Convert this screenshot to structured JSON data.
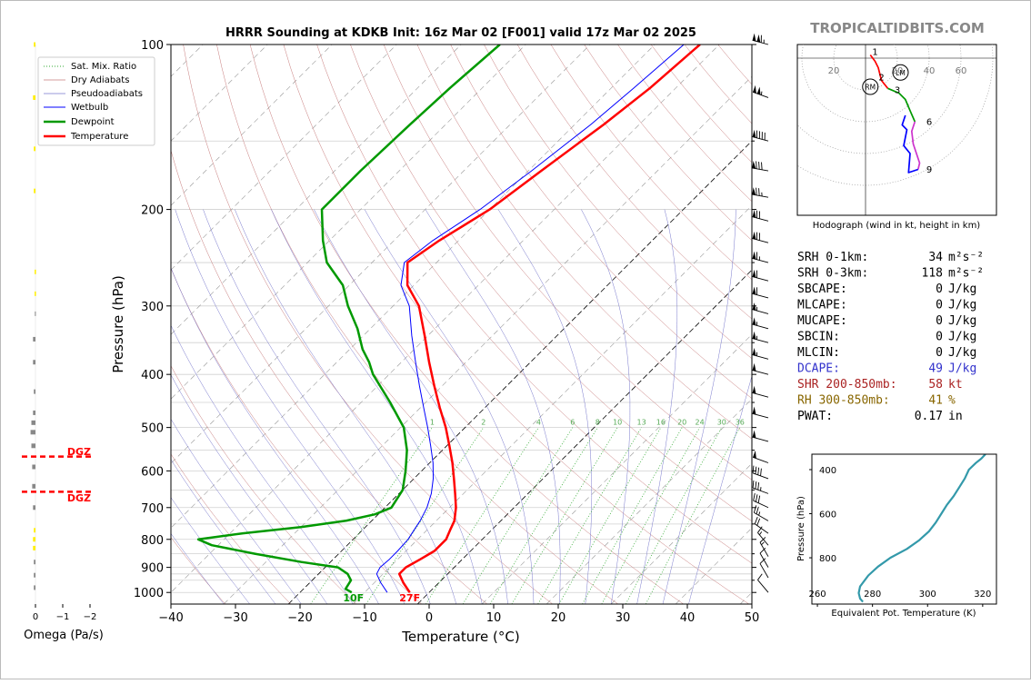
{
  "title": "HRRR Sounding at KDKB Init: 16z Mar 02 [F001] valid 17z Mar 02 2025",
  "brand": "TROPICALTIDBITS.COM",
  "colors": {
    "temperature": "#ff0000",
    "dewpoint": "#009900",
    "wetbulb": "#0000ff",
    "isotherm": "#000000",
    "dry_adiabat": "#c77b7b",
    "moist_adiabat": "#7777cc",
    "mixing_ratio": "#33aa33",
    "dgz": "#ff0000",
    "theta_e": "#3399aa",
    "brand": "#888888"
  },
  "chart_data": [
    {
      "id": "skewt",
      "type": "line",
      "xlabel": "Temperature (°C)",
      "ylabel": "Pressure (hPa)",
      "x_ticks": [
        "−40",
        "−30",
        "−20",
        "−10",
        "0",
        "10",
        "20",
        "30",
        "40",
        "50"
      ],
      "x_tick_values": [
        -40,
        -30,
        -20,
        -10,
        0,
        10,
        20,
        30,
        40,
        50
      ],
      "y_ticks": [
        "100",
        "200",
        "300",
        "400",
        "500",
        "600",
        "700",
        "800",
        "900",
        "1000"
      ],
      "y_tick_values": [
        100,
        200,
        300,
        400,
        500,
        600,
        700,
        800,
        900,
        1000
      ],
      "xlim": [
        -40,
        50
      ],
      "ylim": [
        1050,
        100
      ],
      "y_scale": "log",
      "skew": "isotherms tilted 45°",
      "grid": true,
      "legend_position": "upper-left",
      "legend": [
        "Sat. Mix. Ratio",
        "Dry Adiabats",
        "Pseudoadiabats",
        "Wetbulb",
        "Dewpoint",
        "Temperature"
      ],
      "mixing_ratio_labels": [
        "1",
        "2",
        "4",
        "6",
        "8",
        "10",
        "13",
        "16",
        "20",
        "24",
        "30",
        "36"
      ],
      "mixing_ratio_values": [
        1,
        2,
        4,
        6,
        8,
        10,
        13,
        16,
        20,
        24,
        30,
        36
      ],
      "surface_labels": {
        "dewpoint": "10F",
        "temperature": "27F"
      },
      "series": [
        {
          "name": "Temperature",
          "pressure": [
            1000,
            960,
            925,
            900,
            870,
            840,
            800,
            770,
            740,
            700,
            660,
            620,
            580,
            540,
            500,
            460,
            420,
            380,
            340,
            300,
            275,
            250,
            228,
            200,
            170,
            140,
            120,
            100
          ],
          "values": [
            -3.0,
            -5.5,
            -7.5,
            -7.5,
            -6.5,
            -5.6,
            -5.6,
            -6.4,
            -7.2,
            -9.0,
            -11.3,
            -13.8,
            -16.5,
            -19.6,
            -23.0,
            -27.0,
            -31.2,
            -35.7,
            -40.5,
            -46.0,
            -51.0,
            -54.5,
            -53.0,
            -50.0,
            -48.0,
            -45.5,
            -44.0,
            -43.0
          ]
        },
        {
          "name": "Dewpoint",
          "pressure": [
            1000,
            985,
            950,
            925,
            900,
            880,
            850,
            820,
            800,
            780,
            760,
            740,
            720,
            700,
            650,
            600,
            550,
            500,
            450,
            400,
            380,
            360,
            330,
            300,
            275,
            250,
            228,
            200,
            170,
            140,
            120,
            100
          ],
          "values": [
            -12.0,
            -13.5,
            -14.0,
            -15.5,
            -18.0,
            -24.5,
            -33.0,
            -41.0,
            -44.0,
            -38.0,
            -30.0,
            -24.0,
            -20.5,
            -19.0,
            -20.0,
            -22.5,
            -25.5,
            -29.5,
            -35.5,
            -42.5,
            -45.0,
            -48.0,
            -52.0,
            -57.0,
            -61.0,
            -67.0,
            -71.0,
            -76.0,
            -76.0,
            -75.5,
            -75.0,
            -74.0
          ]
        },
        {
          "name": "Wetbulb",
          "pressure": [
            1000,
            960,
            925,
            900,
            870,
            840,
            800,
            770,
            740,
            700,
            660,
            620,
            580,
            540,
            500,
            460,
            420,
            380,
            340,
            300,
            275,
            250,
            228,
            200,
            170,
            140,
            120,
            100
          ],
          "values": [
            -6.5,
            -9.0,
            -11.0,
            -11.5,
            -11.3,
            -11.3,
            -11.5,
            -12.0,
            -12.5,
            -13.5,
            -15.0,
            -17.0,
            -19.5,
            -22.5,
            -25.8,
            -29.5,
            -33.5,
            -37.8,
            -42.5,
            -47.5,
            -52.0,
            -55.0,
            -54.0,
            -51.5,
            -49.5,
            -47.5,
            -46.5,
            -45.5
          ]
        }
      ]
    },
    {
      "id": "omega",
      "type": "bar",
      "xlabel": "Omega (Pa/s)",
      "x_ticks": [
        "0",
        "−1",
        "−2"
      ],
      "x_tick_values": [
        0,
        -1,
        -2
      ],
      "dgz_label": "DGZ",
      "dgz_pressure": [
        565,
        655
      ]
    },
    {
      "id": "hodograph",
      "type": "line",
      "xlabel": "Hodograph (wind in kt, height in km)",
      "ring_labels": [
        "20",
        "20",
        "40",
        "60"
      ],
      "ring_label_values": [
        -20,
        20,
        40,
        60
      ],
      "point_labels": [
        "1",
        "2",
        "3",
        "6",
        "9"
      ],
      "storm_motion_labels": [
        "RM",
        "LM"
      ],
      "segments": [
        {
          "name": "0-3 km",
          "color": "#ff0000",
          "u": [
            3,
            6,
            8,
            10,
            14
          ],
          "v": [
            2,
            -2,
            -6,
            -14,
            -19
          ]
        },
        {
          "name": "3-6 km",
          "color": "#009900",
          "u": [
            14,
            21,
            25,
            28,
            31
          ],
          "v": [
            -19,
            -22,
            -26,
            -33,
            -40
          ]
        },
        {
          "name": "6-9 km",
          "color": "#cc33cc",
          "u": [
            31,
            29,
            30,
            34,
            33
          ],
          "v": [
            -40,
            -46,
            -54,
            -66,
            -70
          ]
        },
        {
          "name": "9+ km",
          "color": "#0000ff",
          "u": [
            33,
            27,
            28,
            24,
            26,
            23,
            25
          ],
          "v": [
            -70,
            -72,
            -60,
            -55,
            -45,
            -42,
            -36
          ]
        }
      ],
      "storm_motion": {
        "RM": [
          3,
          -18
        ],
        "LM": [
          22,
          -9
        ]
      }
    },
    {
      "id": "theta_e",
      "type": "line",
      "xlabel": "Equivalent Pot. Temperature (K)",
      "ylabel": "Pressure (hPa)",
      "x_ticks": [
        "260",
        "280",
        "300",
        "320"
      ],
      "x_tick_values": [
        260,
        280,
        300,
        320
      ],
      "y_ticks": [
        "400",
        "600",
        "800"
      ],
      "y_tick_values": [
        400,
        600,
        800
      ],
      "xlim": [
        258,
        325
      ],
      "ylim": [
        1010,
        330
      ],
      "pressure": [
        1000,
        985,
        960,
        930,
        880,
        840,
        800,
        760,
        720,
        680,
        640,
        600,
        560,
        520,
        480,
        440,
        400,
        370,
        350,
        330
      ],
      "values": [
        276.5,
        275.5,
        275.0,
        275.5,
        278.5,
        282.0,
        286.5,
        292.5,
        297.0,
        300.5,
        303.0,
        305.0,
        307.0,
        309.5,
        311.5,
        313.5,
        315.0,
        317.5,
        319.5,
        321.0
      ]
    }
  ],
  "stats": [
    {
      "label": "SRH 0-1km:",
      "value": "34",
      "unit": "m²s⁻²",
      "color": "#000000"
    },
    {
      "label": "SRH 0-3km:",
      "value": "118",
      "unit": "m²s⁻²",
      "color": "#000000"
    },
    {
      "label": "SBCAPE:",
      "value": "0",
      "unit": "J/kg",
      "color": "#000000"
    },
    {
      "label": "MLCAPE:",
      "value": "0",
      "unit": "J/kg",
      "color": "#000000"
    },
    {
      "label": "MUCAPE:",
      "value": "0",
      "unit": "J/kg",
      "color": "#000000"
    },
    {
      "label": "SBCIN:",
      "value": "0",
      "unit": "J/kg",
      "color": "#000000"
    },
    {
      "label": "MLCIN:",
      "value": "0",
      "unit": "J/kg",
      "color": "#000000"
    },
    {
      "label": "DCAPE:",
      "value": "49",
      "unit": "J/kg",
      "color": "#3333cc"
    },
    {
      "label": "SHR 200-850mb:",
      "value": "58",
      "unit": "kt",
      "color": "#aa2222"
    },
    {
      "label": "RH 300-850mb:",
      "value": "41",
      "unit": "%",
      "color": "#886600"
    },
    {
      "label": "PWAT:",
      "value": "0.17",
      "unit": "in",
      "color": "#000000"
    }
  ],
  "winds": [
    {
      "p": 100,
      "dir": 285,
      "spd": 115
    },
    {
      "p": 125,
      "dir": 290,
      "spd": 105
    },
    {
      "p": 150,
      "dir": 285,
      "spd": 90
    },
    {
      "p": 170,
      "dir": 280,
      "spd": 80
    },
    {
      "p": 190,
      "dir": 280,
      "spd": 75
    },
    {
      "p": 210,
      "dir": 285,
      "spd": 70
    },
    {
      "p": 230,
      "dir": 285,
      "spd": 70
    },
    {
      "p": 250,
      "dir": 285,
      "spd": 65
    },
    {
      "p": 270,
      "dir": 285,
      "spd": 60
    },
    {
      "p": 290,
      "dir": 285,
      "spd": 60
    },
    {
      "p": 310,
      "dir": 285,
      "spd": 55
    },
    {
      "p": 330,
      "dir": 285,
      "spd": 55
    },
    {
      "p": 350,
      "dir": 285,
      "spd": 55
    },
    {
      "p": 375,
      "dir": 285,
      "spd": 55
    },
    {
      "p": 400,
      "dir": 285,
      "spd": 50
    },
    {
      "p": 440,
      "dir": 285,
      "spd": 50
    },
    {
      "p": 480,
      "dir": 285,
      "spd": 50
    },
    {
      "p": 530,
      "dir": 285,
      "spd": 50
    },
    {
      "p": 580,
      "dir": 290,
      "spd": 50
    },
    {
      "p": 620,
      "dir": 290,
      "spd": 40
    },
    {
      "p": 660,
      "dir": 290,
      "spd": 35
    },
    {
      "p": 700,
      "dir": 295,
      "spd": 30
    },
    {
      "p": 740,
      "dir": 300,
      "spd": 25
    },
    {
      "p": 780,
      "dir": 305,
      "spd": 20
    },
    {
      "p": 820,
      "dir": 320,
      "spd": 15
    },
    {
      "p": 860,
      "dir": 330,
      "spd": 15
    },
    {
      "p": 900,
      "dir": 330,
      "spd": 10
    },
    {
      "p": 940,
      "dir": 330,
      "spd": 10
    },
    {
      "p": 1000,
      "dir": 320,
      "spd": 10
    }
  ]
}
